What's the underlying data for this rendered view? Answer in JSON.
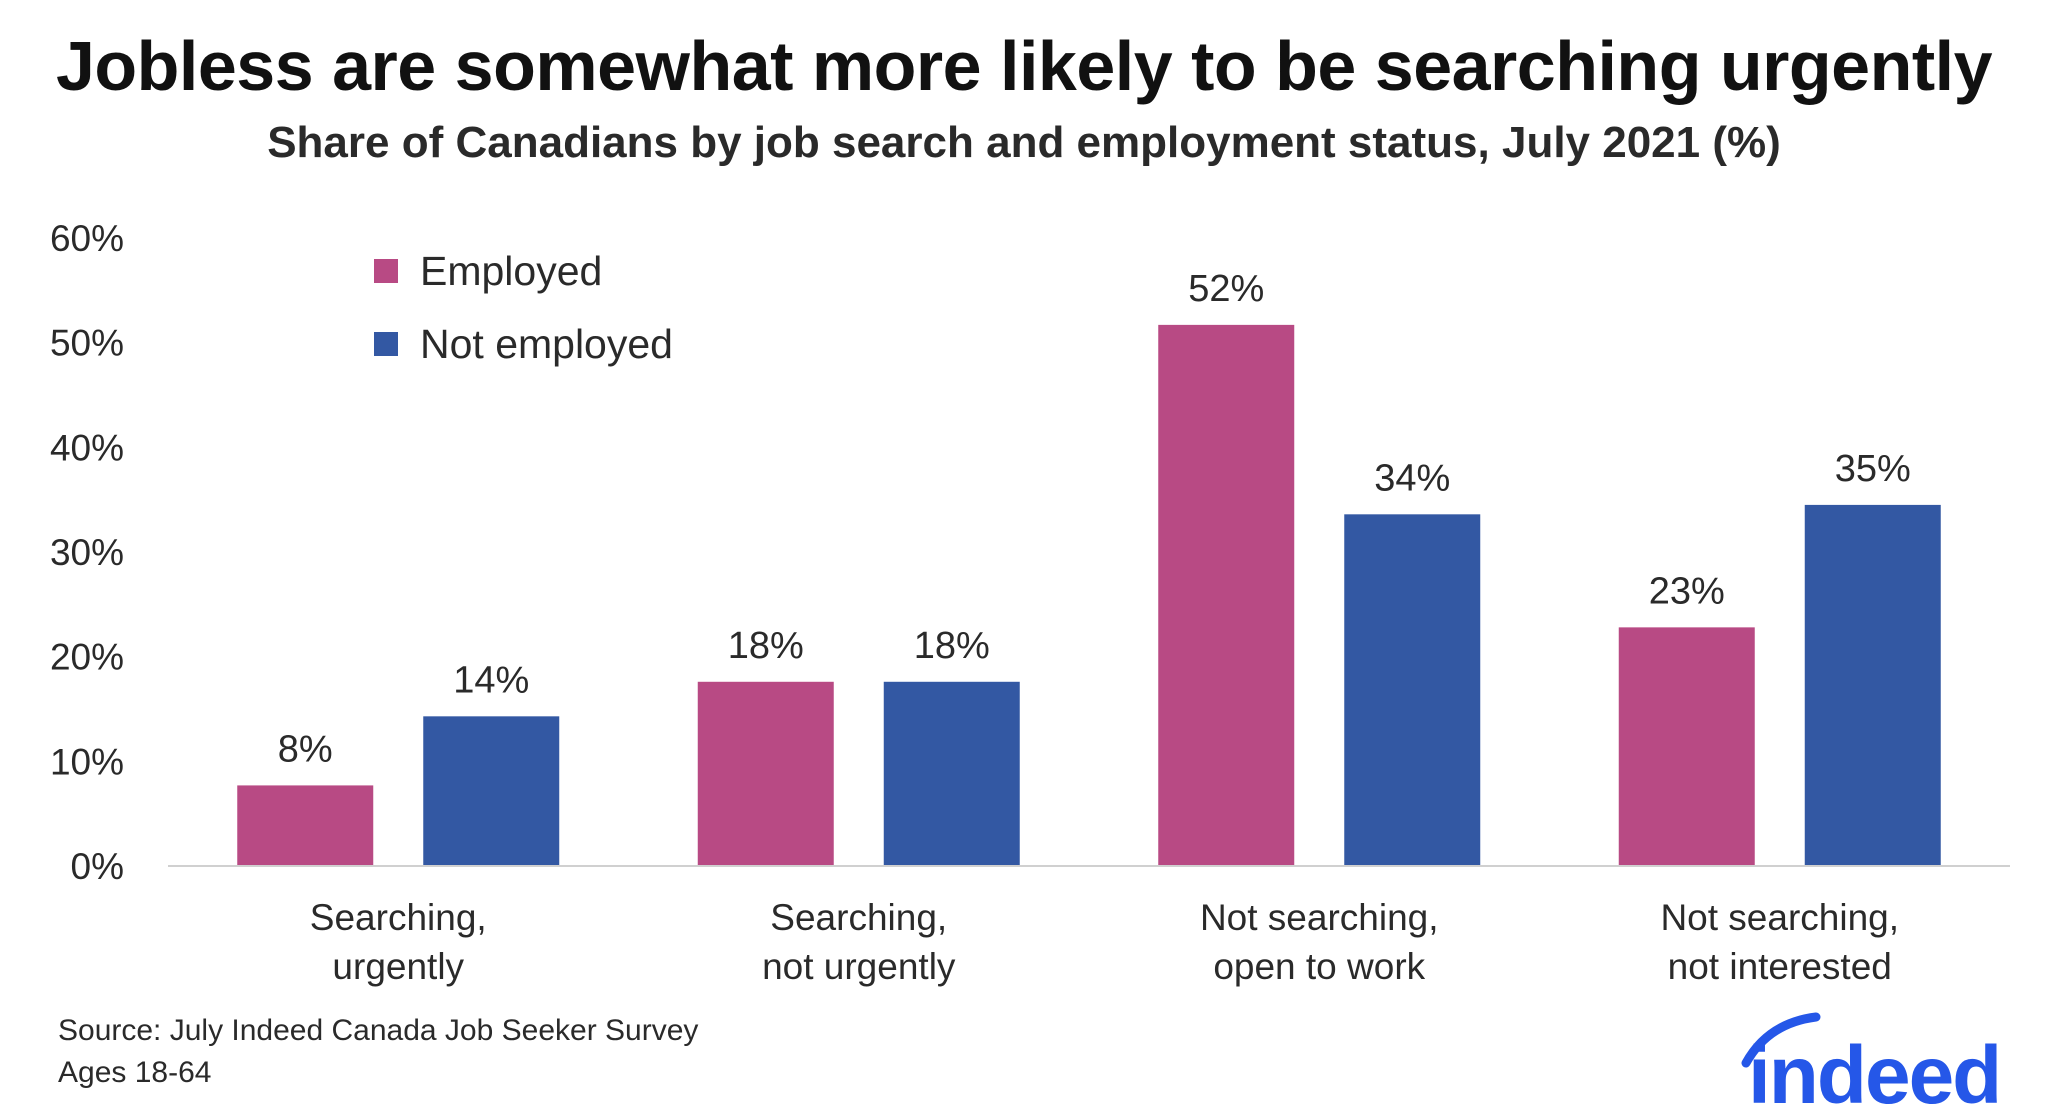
{
  "title": "Jobless are somewhat more likely to be searching urgently",
  "subtitle": "Share of Canadians by job search and employment status, July 2021 (%)",
  "chart_data": {
    "type": "bar",
    "categories": [
      [
        "Searching,",
        "urgently"
      ],
      [
        "Searching,",
        "not urgently"
      ],
      [
        "Not searching,",
        "open to work"
      ],
      [
        "Not searching,",
        "not interested"
      ]
    ],
    "series": [
      {
        "name": "Employed",
        "color": "#b84a84",
        "values": [
          7.7,
          17.6,
          51.7,
          22.8
        ],
        "labels": [
          "8%",
          "18%",
          "52%",
          "23%"
        ]
      },
      {
        "name": "Not employed",
        "color": "#3358a3",
        "values": [
          14.3,
          17.6,
          33.6,
          34.5
        ],
        "labels": [
          "14%",
          "18%",
          "34%",
          "35%"
        ]
      }
    ],
    "ylim": [
      0,
      60
    ],
    "yticks": [
      0,
      10,
      20,
      30,
      40,
      50,
      60
    ],
    "ytick_labels": [
      "0%",
      "10%",
      "20%",
      "30%",
      "40%",
      "50%",
      "60%"
    ],
    "legend_position": "top-left",
    "grid": false
  },
  "source_lines": [
    "Source: July Indeed Canada Job Seeker Survey",
    "Ages 18-64"
  ],
  "logo_text": "indeed",
  "brand_color": "#2557e8"
}
